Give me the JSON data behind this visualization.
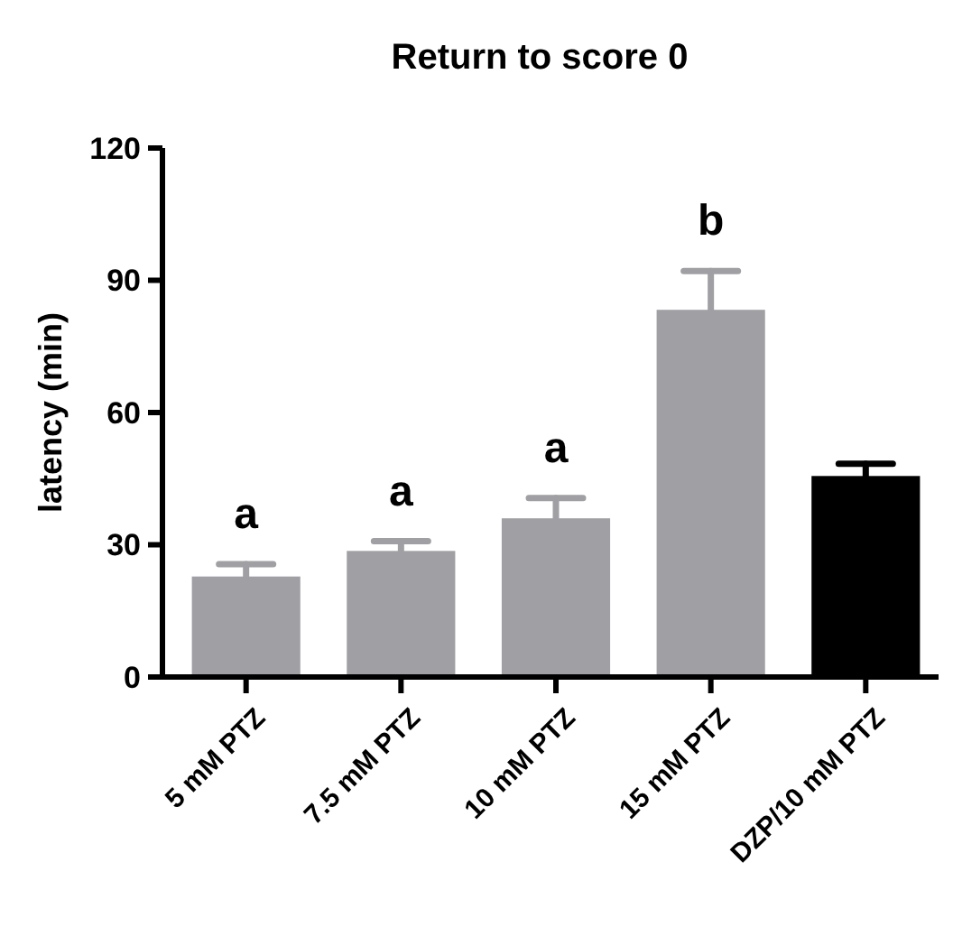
{
  "chart_data": {
    "type": "bar",
    "title": "Return to score 0",
    "ylabel": "latency (min)",
    "categories": [
      "5 mM PTZ",
      "7.5 mM PTZ",
      "10 mM PTZ",
      "15 mM PTZ",
      "DZP/10 mM PTZ"
    ],
    "values": [
      22.8,
      28.6,
      36.0,
      83.3,
      45.6
    ],
    "colors": [
      "#a0a0a4",
      "#a0a0a4",
      "#a0a0a4",
      "#a0a0a4",
      "#000000"
    ],
    "errors": [
      [
        22.8,
        25.6
      ],
      [
        28.6,
        30.8
      ],
      [
        36.0,
        40.6
      ],
      [
        83.3,
        92.1
      ],
      [
        45.6,
        48.4
      ]
    ],
    "ylim": [
      0,
      120
    ],
    "yticks": [
      0,
      30,
      60,
      90,
      120
    ],
    "annotations": [
      {
        "text": "a",
        "x": "5 mM PTZ",
        "y": 25.6
      },
      {
        "text": "a",
        "x": "7.5 mM PTZ",
        "y": 30.8
      },
      {
        "text": "a",
        "x": "10 mM PTZ",
        "y": 40.6
      },
      {
        "text": "b",
        "x": "15 mM PTZ",
        "y": 92.1
      }
    ]
  }
}
